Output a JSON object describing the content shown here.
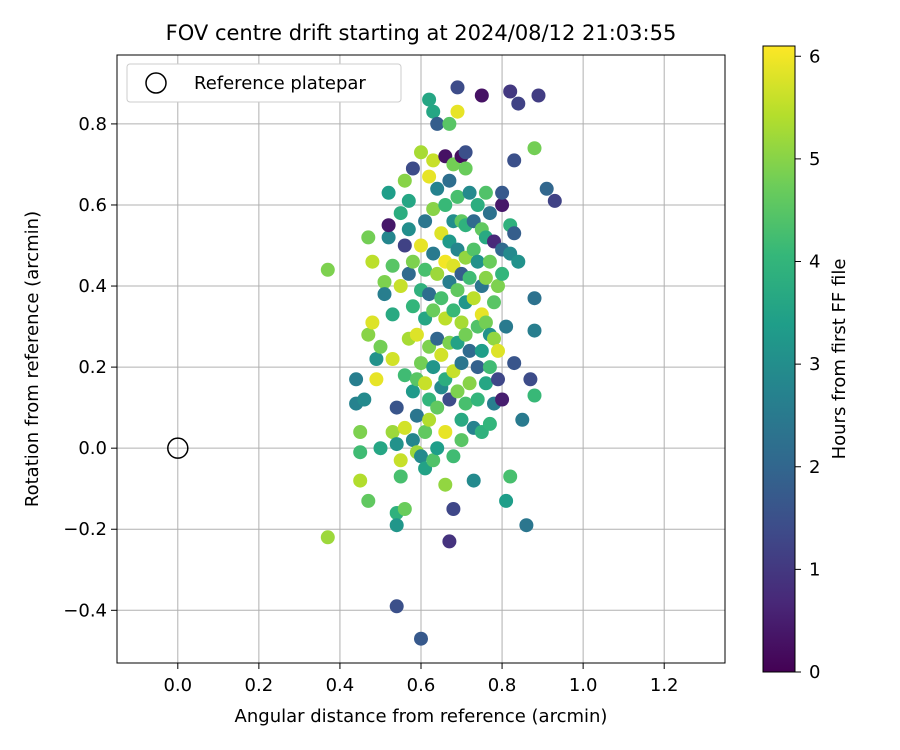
{
  "chart_data": {
    "type": "scatter",
    "title": "FOV centre drift starting at 2024/08/12 21:03:55",
    "xlabel": "Angular distance from reference (arcmin)",
    "ylabel": "Rotation from reference (arcmin)",
    "xlim": [
      -0.15,
      1.35
    ],
    "ylim": [
      -0.53,
      0.97
    ],
    "xticks": [
      "0.0",
      "0.2",
      "0.4",
      "0.6",
      "0.8",
      "1.0",
      "1.2"
    ],
    "xtick_values": [
      0.0,
      0.2,
      0.4,
      0.6,
      0.8,
      1.0,
      1.2
    ],
    "yticks": [
      "−0.4",
      "−0.2",
      "0.0",
      "0.2",
      "0.4",
      "0.6",
      "0.8"
    ],
    "ytick_values": [
      -0.4,
      -0.2,
      0.0,
      0.2,
      0.4,
      0.6,
      0.8
    ],
    "grid": true,
    "legend": {
      "placement": "upper-left",
      "label": "Reference platepar"
    },
    "reference_point": {
      "x": 0.0,
      "y": 0.0
    },
    "colorbar": {
      "label": "Hours from first FF file",
      "min": 0,
      "max": 6.1,
      "ticks": [
        "0",
        "1",
        "2",
        "3",
        "4",
        "5",
        "6"
      ],
      "tick_values": [
        0,
        1,
        2,
        3,
        4,
        5,
        6
      ],
      "colormap": "viridis"
    },
    "points": [
      {
        "x": 0.37,
        "y": 0.44,
        "c": 4.9
      },
      {
        "x": 0.37,
        "y": -0.22,
        "c": 5.2
      },
      {
        "x": 0.44,
        "y": 0.11,
        "c": 2.7
      },
      {
        "x": 0.44,
        "y": 0.17,
        "c": 2.6
      },
      {
        "x": 0.45,
        "y": 0.04,
        "c": 4.9
      },
      {
        "x": 0.45,
        "y": -0.01,
        "c": 4.2
      },
      {
        "x": 0.45,
        "y": -0.08,
        "c": 5.4
      },
      {
        "x": 0.46,
        "y": 0.12,
        "c": 2.9
      },
      {
        "x": 0.47,
        "y": 0.52,
        "c": 4.8
      },
      {
        "x": 0.47,
        "y": -0.13,
        "c": 4.6
      },
      {
        "x": 0.47,
        "y": 0.28,
        "c": 5.0
      },
      {
        "x": 0.48,
        "y": 0.46,
        "c": 5.5
      },
      {
        "x": 0.48,
        "y": 0.31,
        "c": 5.8
      },
      {
        "x": 0.49,
        "y": 0.22,
        "c": 3.1
      },
      {
        "x": 0.49,
        "y": 0.17,
        "c": 5.9
      },
      {
        "x": 0.5,
        "y": 0.0,
        "c": 3.6
      },
      {
        "x": 0.5,
        "y": 0.25,
        "c": 4.8
      },
      {
        "x": 0.51,
        "y": 0.41,
        "c": 4.9
      },
      {
        "x": 0.51,
        "y": 0.38,
        "c": 2.6
      },
      {
        "x": 0.52,
        "y": 0.52,
        "c": 2.8
      },
      {
        "x": 0.52,
        "y": 0.55,
        "c": 0.4
      },
      {
        "x": 0.52,
        "y": 0.63,
        "c": 3.4
      },
      {
        "x": 0.53,
        "y": 0.33,
        "c": 3.7
      },
      {
        "x": 0.53,
        "y": 0.45,
        "c": 4.5
      },
      {
        "x": 0.53,
        "y": 0.22,
        "c": 5.7
      },
      {
        "x": 0.53,
        "y": 0.04,
        "c": 5.2
      },
      {
        "x": 0.54,
        "y": -0.16,
        "c": 3.9
      },
      {
        "x": 0.54,
        "y": -0.19,
        "c": 3.2
      },
      {
        "x": 0.54,
        "y": -0.39,
        "c": 1.5
      },
      {
        "x": 0.54,
        "y": 0.1,
        "c": 1.6
      },
      {
        "x": 0.54,
        "y": 0.01,
        "c": 3.1
      },
      {
        "x": 0.55,
        "y": 0.4,
        "c": 5.6
      },
      {
        "x": 0.55,
        "y": 0.58,
        "c": 3.8
      },
      {
        "x": 0.55,
        "y": -0.03,
        "c": 5.6
      },
      {
        "x": 0.55,
        "y": -0.07,
        "c": 4.3
      },
      {
        "x": 0.56,
        "y": 0.5,
        "c": 1.2
      },
      {
        "x": 0.56,
        "y": 0.18,
        "c": 4.2
      },
      {
        "x": 0.56,
        "y": 0.05,
        "c": 5.7
      },
      {
        "x": 0.56,
        "y": -0.15,
        "c": 4.7
      },
      {
        "x": 0.56,
        "y": 0.66,
        "c": 5.0
      },
      {
        "x": 0.57,
        "y": 0.61,
        "c": 3.6
      },
      {
        "x": 0.57,
        "y": 0.43,
        "c": 2.1
      },
      {
        "x": 0.57,
        "y": 0.27,
        "c": 5.3
      },
      {
        "x": 0.57,
        "y": 0.54,
        "c": 3.0
      },
      {
        "x": 0.58,
        "y": 0.69,
        "c": 1.4
      },
      {
        "x": 0.58,
        "y": 0.46,
        "c": 4.9
      },
      {
        "x": 0.58,
        "y": 0.35,
        "c": 4.0
      },
      {
        "x": 0.58,
        "y": 0.14,
        "c": 3.3
      },
      {
        "x": 0.58,
        "y": 0.02,
        "c": 2.8
      },
      {
        "x": 0.59,
        "y": 0.17,
        "c": 4.5
      },
      {
        "x": 0.59,
        "y": 0.28,
        "c": 5.8
      },
      {
        "x": 0.59,
        "y": 0.08,
        "c": 2.4
      },
      {
        "x": 0.59,
        "y": -0.01,
        "c": 5.2
      },
      {
        "x": 0.6,
        "y": 0.73,
        "c": 5.3
      },
      {
        "x": 0.6,
        "y": 0.5,
        "c": 5.9
      },
      {
        "x": 0.6,
        "y": 0.39,
        "c": 3.9
      },
      {
        "x": 0.6,
        "y": 0.21,
        "c": 4.8
      },
      {
        "x": 0.6,
        "y": -0.02,
        "c": 2.9
      },
      {
        "x": 0.6,
        "y": -0.47,
        "c": 1.7
      },
      {
        "x": 0.61,
        "y": 0.56,
        "c": 2.4
      },
      {
        "x": 0.61,
        "y": 0.44,
        "c": 4.3
      },
      {
        "x": 0.61,
        "y": 0.32,
        "c": 3.6
      },
      {
        "x": 0.61,
        "y": 0.16,
        "c": 5.6
      },
      {
        "x": 0.61,
        "y": -0.05,
        "c": 3.5
      },
      {
        "x": 0.61,
        "y": 0.04,
        "c": 4.6
      },
      {
        "x": 0.62,
        "y": 0.86,
        "c": 3.6
      },
      {
        "x": 0.62,
        "y": 0.67,
        "c": 5.9
      },
      {
        "x": 0.62,
        "y": 0.38,
        "c": 2.2
      },
      {
        "x": 0.62,
        "y": 0.25,
        "c": 4.9
      },
      {
        "x": 0.62,
        "y": 0.12,
        "c": 4.0
      },
      {
        "x": 0.62,
        "y": 0.07,
        "c": 5.4
      },
      {
        "x": 0.63,
        "y": 0.83,
        "c": 3.6
      },
      {
        "x": 0.63,
        "y": 0.71,
        "c": 5.6
      },
      {
        "x": 0.63,
        "y": 0.59,
        "c": 5.0
      },
      {
        "x": 0.63,
        "y": 0.48,
        "c": 2.5
      },
      {
        "x": 0.63,
        "y": 0.34,
        "c": 4.7
      },
      {
        "x": 0.63,
        "y": 0.2,
        "c": 3.2
      },
      {
        "x": 0.63,
        "y": -0.03,
        "c": 4.4
      },
      {
        "x": 0.64,
        "y": 0.8,
        "c": 1.8
      },
      {
        "x": 0.64,
        "y": 0.64,
        "c": 2.7
      },
      {
        "x": 0.64,
        "y": 0.43,
        "c": 5.2
      },
      {
        "x": 0.64,
        "y": 0.27,
        "c": 2.0
      },
      {
        "x": 0.64,
        "y": 0.1,
        "c": 4.6
      },
      {
        "x": 0.64,
        "y": 0.0,
        "c": 3.4
      },
      {
        "x": 0.65,
        "y": 0.53,
        "c": 5.8
      },
      {
        "x": 0.65,
        "y": 0.37,
        "c": 4.3
      },
      {
        "x": 0.65,
        "y": 0.23,
        "c": 5.7
      },
      {
        "x": 0.65,
        "y": 0.15,
        "c": 2.9
      },
      {
        "x": 0.66,
        "y": 0.72,
        "c": 0.3
      },
      {
        "x": 0.66,
        "y": 0.6,
        "c": 4.1
      },
      {
        "x": 0.66,
        "y": 0.46,
        "c": 6.0
      },
      {
        "x": 0.66,
        "y": 0.32,
        "c": 5.5
      },
      {
        "x": 0.66,
        "y": 0.17,
        "c": 3.8
      },
      {
        "x": 0.66,
        "y": 0.04,
        "c": 5.9
      },
      {
        "x": 0.66,
        "y": -0.09,
        "c": 5.1
      },
      {
        "x": 0.67,
        "y": 0.8,
        "c": 4.5
      },
      {
        "x": 0.67,
        "y": 0.66,
        "c": 2.2
      },
      {
        "x": 0.67,
        "y": 0.51,
        "c": 3.3
      },
      {
        "x": 0.67,
        "y": 0.41,
        "c": 2.6
      },
      {
        "x": 0.67,
        "y": 0.26,
        "c": 4.9
      },
      {
        "x": 0.67,
        "y": 0.12,
        "c": 1.4
      },
      {
        "x": 0.67,
        "y": -0.23,
        "c": 0.9
      },
      {
        "x": 0.68,
        "y": 0.7,
        "c": 4.8
      },
      {
        "x": 0.68,
        "y": 0.56,
        "c": 3.0
      },
      {
        "x": 0.68,
        "y": 0.45,
        "c": 5.8
      },
      {
        "x": 0.68,
        "y": 0.34,
        "c": 4.1
      },
      {
        "x": 0.68,
        "y": 0.19,
        "c": 5.6
      },
      {
        "x": 0.68,
        "y": -0.15,
        "c": 1.3
      },
      {
        "x": 0.68,
        "y": -0.02,
        "c": 4.2
      },
      {
        "x": 0.69,
        "y": 0.89,
        "c": 1.4
      },
      {
        "x": 0.69,
        "y": 0.83,
        "c": 5.9
      },
      {
        "x": 0.69,
        "y": 0.62,
        "c": 4.3
      },
      {
        "x": 0.69,
        "y": 0.49,
        "c": 2.8
      },
      {
        "x": 0.69,
        "y": 0.39,
        "c": 4.6
      },
      {
        "x": 0.69,
        "y": 0.26,
        "c": 3.5
      },
      {
        "x": 0.69,
        "y": 0.14,
        "c": 4.9
      },
      {
        "x": 0.7,
        "y": 0.72,
        "c": 0.2
      },
      {
        "x": 0.7,
        "y": 0.56,
        "c": 4.6
      },
      {
        "x": 0.7,
        "y": 0.43,
        "c": 1.8
      },
      {
        "x": 0.7,
        "y": 0.31,
        "c": 5.3
      },
      {
        "x": 0.7,
        "y": 0.21,
        "c": 2.4
      },
      {
        "x": 0.7,
        "y": 0.07,
        "c": 3.7
      },
      {
        "x": 0.7,
        "y": 0.02,
        "c": 4.5
      },
      {
        "x": 0.71,
        "y": 0.73,
        "c": 1.5
      },
      {
        "x": 0.71,
        "y": 0.69,
        "c": 4.7
      },
      {
        "x": 0.71,
        "y": 0.55,
        "c": 3.9
      },
      {
        "x": 0.71,
        "y": 0.47,
        "c": 5.1
      },
      {
        "x": 0.71,
        "y": 0.36,
        "c": 3.2
      },
      {
        "x": 0.71,
        "y": 0.28,
        "c": 4.8
      },
      {
        "x": 0.71,
        "y": 0.11,
        "c": 4.3
      },
      {
        "x": 0.72,
        "y": 0.63,
        "c": 2.9
      },
      {
        "x": 0.72,
        "y": 0.42,
        "c": 4.2
      },
      {
        "x": 0.72,
        "y": 0.24,
        "c": 2.1
      },
      {
        "x": 0.72,
        "y": 0.16,
        "c": 5.0
      },
      {
        "x": 0.73,
        "y": 0.56,
        "c": 2.1
      },
      {
        "x": 0.73,
        "y": 0.49,
        "c": 4.4
      },
      {
        "x": 0.73,
        "y": 0.37,
        "c": 5.5
      },
      {
        "x": 0.73,
        "y": 0.05,
        "c": 2.7
      },
      {
        "x": 0.73,
        "y": -0.08,
        "c": 2.9
      },
      {
        "x": 0.74,
        "y": 0.6,
        "c": 3.8
      },
      {
        "x": 0.74,
        "y": 0.46,
        "c": 3.1
      },
      {
        "x": 0.74,
        "y": 0.3,
        "c": 4.4
      },
      {
        "x": 0.74,
        "y": 0.2,
        "c": 1.9
      },
      {
        "x": 0.74,
        "y": 0.12,
        "c": 4.0
      },
      {
        "x": 0.75,
        "y": 0.87,
        "c": 0.3
      },
      {
        "x": 0.75,
        "y": 0.54,
        "c": 4.6
      },
      {
        "x": 0.75,
        "y": 0.4,
        "c": 2.4
      },
      {
        "x": 0.75,
        "y": 0.33,
        "c": 5.9
      },
      {
        "x": 0.75,
        "y": 0.24,
        "c": 3.4
      },
      {
        "x": 0.75,
        "y": 0.04,
        "c": 3.9
      },
      {
        "x": 0.76,
        "y": 0.63,
        "c": 4.4
      },
      {
        "x": 0.76,
        "y": 0.52,
        "c": 3.7
      },
      {
        "x": 0.76,
        "y": 0.42,
        "c": 5.0
      },
      {
        "x": 0.76,
        "y": 0.31,
        "c": 4.8
      },
      {
        "x": 0.76,
        "y": 0.16,
        "c": 3.6
      },
      {
        "x": 0.77,
        "y": 0.58,
        "c": 2.3
      },
      {
        "x": 0.77,
        "y": 0.46,
        "c": 4.7
      },
      {
        "x": 0.77,
        "y": 0.28,
        "c": 3.1
      },
      {
        "x": 0.77,
        "y": 0.2,
        "c": 4.2
      },
      {
        "x": 0.77,
        "y": 0.06,
        "c": 4.0
      },
      {
        "x": 0.78,
        "y": 0.51,
        "c": 0.7
      },
      {
        "x": 0.78,
        "y": 0.36,
        "c": 4.5
      },
      {
        "x": 0.78,
        "y": 0.27,
        "c": 5.1
      },
      {
        "x": 0.78,
        "y": 0.11,
        "c": 2.6
      },
      {
        "x": 0.79,
        "y": 0.4,
        "c": 4.9
      },
      {
        "x": 0.79,
        "y": 0.24,
        "c": 5.8
      },
      {
        "x": 0.79,
        "y": 0.17,
        "c": 1.3
      },
      {
        "x": 0.8,
        "y": 0.6,
        "c": 0.4
      },
      {
        "x": 0.8,
        "y": 0.63,
        "c": 1.7
      },
      {
        "x": 0.8,
        "y": 0.49,
        "c": 2.1
      },
      {
        "x": 0.8,
        "y": 0.43,
        "c": 4.0
      },
      {
        "x": 0.8,
        "y": 0.12,
        "c": 0.5
      },
      {
        "x": 0.81,
        "y": 0.3,
        "c": 2.5
      },
      {
        "x": 0.81,
        "y": -0.13,
        "c": 3.4
      },
      {
        "x": 0.82,
        "y": 0.88,
        "c": 1.0
      },
      {
        "x": 0.82,
        "y": 0.55,
        "c": 3.9
      },
      {
        "x": 0.82,
        "y": 0.48,
        "c": 2.9
      },
      {
        "x": 0.82,
        "y": -0.07,
        "c": 4.3
      },
      {
        "x": 0.83,
        "y": 0.71,
        "c": 1.5
      },
      {
        "x": 0.83,
        "y": 0.53,
        "c": 1.8
      },
      {
        "x": 0.83,
        "y": 0.21,
        "c": 1.6
      },
      {
        "x": 0.84,
        "y": 0.85,
        "c": 1.2
      },
      {
        "x": 0.84,
        "y": 0.46,
        "c": 3.1
      },
      {
        "x": 0.85,
        "y": 0.07,
        "c": 2.5
      },
      {
        "x": 0.86,
        "y": -0.19,
        "c": 2.4
      },
      {
        "x": 0.87,
        "y": 0.17,
        "c": 1.4
      },
      {
        "x": 0.88,
        "y": 0.37,
        "c": 2.3
      },
      {
        "x": 0.88,
        "y": 0.13,
        "c": 4.1
      },
      {
        "x": 0.88,
        "y": 0.29,
        "c": 2.6
      },
      {
        "x": 0.88,
        "y": 0.74,
        "c": 4.8
      },
      {
        "x": 0.89,
        "y": 0.87,
        "c": 1.1
      },
      {
        "x": 0.91,
        "y": 0.64,
        "c": 2.0
      },
      {
        "x": 0.93,
        "y": 0.61,
        "c": 1.2
      }
    ]
  }
}
